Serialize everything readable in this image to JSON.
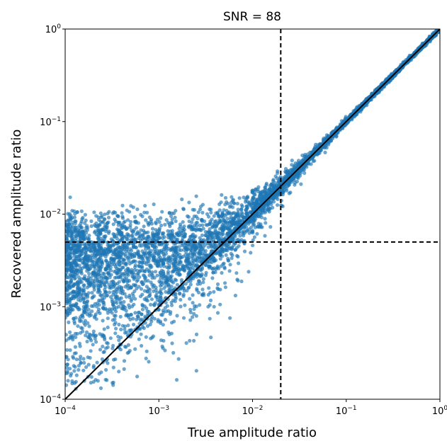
{
  "chart_data": {
    "type": "scatter",
    "title": "SNR = 88",
    "xlabel": "True amplitude ratio",
    "ylabel": "Recovered amplitude ratio",
    "xscale": "log",
    "yscale": "log",
    "xlim": [
      0.0001,
      1
    ],
    "ylim": [
      0.0001,
      1
    ],
    "x_ticks": [
      {
        "value": 0.0001,
        "base": "10",
        "exp": "−4"
      },
      {
        "value": 0.001,
        "base": "10",
        "exp": "−3"
      },
      {
        "value": 0.01,
        "base": "10",
        "exp": "−2"
      },
      {
        "value": 0.1,
        "base": "10",
        "exp": "−1"
      },
      {
        "value": 1,
        "base": "10",
        "exp": "0"
      }
    ],
    "y_ticks": [
      {
        "value": 0.0001,
        "base": "10",
        "exp": "−4"
      },
      {
        "value": 0.001,
        "base": "10",
        "exp": "−3"
      },
      {
        "value": 0.01,
        "base": "10",
        "exp": "−2"
      },
      {
        "value": 0.1,
        "base": "10",
        "exp": "−1"
      },
      {
        "value": 1,
        "base": "10",
        "exp": "0"
      }
    ],
    "grid": false,
    "legend": "none",
    "point_color": "#1f77b4",
    "reference_lines": [
      {
        "type": "diagonal",
        "equation": "y = x",
        "style": "solid",
        "color": "#000000"
      },
      {
        "type": "vertical",
        "x": 0.02,
        "style": "dashed",
        "color": "#000000"
      },
      {
        "type": "horizontal",
        "y": 0.005,
        "style": "dashed",
        "color": "#000000"
      }
    ],
    "scatter_description_points": [
      {
        "x": 0.0001,
        "y": 0.0055
      },
      {
        "x": 0.0003,
        "y": 0.005
      },
      {
        "x": 0.001,
        "y": 0.0045
      },
      {
        "x": 0.003,
        "y": 0.005
      },
      {
        "x": 0.01,
        "y": 0.009
      },
      {
        "x": 0.02,
        "y": 0.02
      },
      {
        "x": 0.05,
        "y": 0.05
      },
      {
        "x": 0.1,
        "y": 0.1
      },
      {
        "x": 0.3,
        "y": 0.3
      },
      {
        "x": 1,
        "y": 1
      }
    ]
  }
}
